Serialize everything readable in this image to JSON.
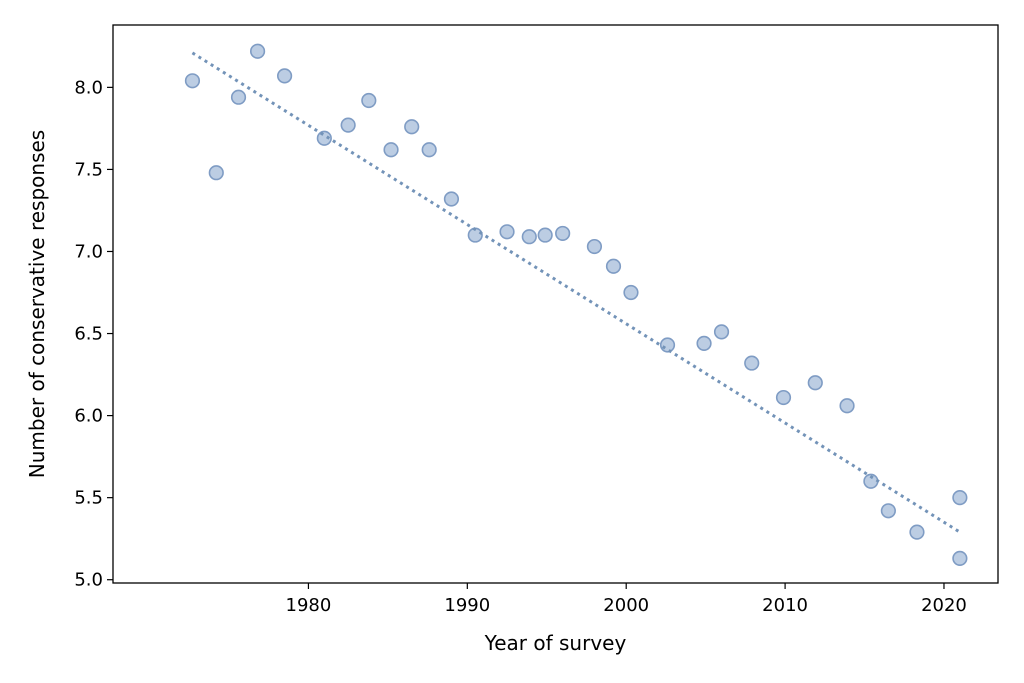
{
  "chart_data": {
    "type": "scatter",
    "title": "",
    "xlabel": "Year of survey",
    "ylabel": "Number of conservative responses",
    "xlim": [
      1967.7,
      2023.4
    ],
    "ylim": [
      4.98,
      8.38
    ],
    "xticks": [
      1980,
      1990,
      2000,
      2010,
      2020
    ],
    "yticks": [
      5.0,
      5.5,
      6.0,
      6.5,
      7.0,
      7.5,
      8.0
    ],
    "grid": false,
    "legend": "none",
    "colors": {
      "point_fill": "#b0c4de",
      "point_edge": "#7f9cc4",
      "trend": "#7393b8"
    },
    "points": [
      {
        "x": 1972.7,
        "y": 8.04
      },
      {
        "x": 1974.2,
        "y": 7.48
      },
      {
        "x": 1975.6,
        "y": 7.94
      },
      {
        "x": 1976.8,
        "y": 8.22
      },
      {
        "x": 1978.5,
        "y": 8.07
      },
      {
        "x": 1981.0,
        "y": 7.69
      },
      {
        "x": 1982.5,
        "y": 7.77
      },
      {
        "x": 1983.8,
        "y": 7.92
      },
      {
        "x": 1985.2,
        "y": 7.62
      },
      {
        "x": 1986.5,
        "y": 7.76
      },
      {
        "x": 1987.6,
        "y": 7.62
      },
      {
        "x": 1989.0,
        "y": 7.32
      },
      {
        "x": 1990.5,
        "y": 7.1
      },
      {
        "x": 1992.5,
        "y": 7.12
      },
      {
        "x": 1993.9,
        "y": 7.09
      },
      {
        "x": 1994.9,
        "y": 7.1
      },
      {
        "x": 1996.0,
        "y": 7.11
      },
      {
        "x": 1998.0,
        "y": 7.03
      },
      {
        "x": 1999.2,
        "y": 6.91
      },
      {
        "x": 2000.3,
        "y": 6.75
      },
      {
        "x": 2002.6,
        "y": 6.43
      },
      {
        "x": 2004.9,
        "y": 6.44
      },
      {
        "x": 2006.0,
        "y": 6.51
      },
      {
        "x": 2007.9,
        "y": 6.32
      },
      {
        "x": 2009.9,
        "y": 6.11
      },
      {
        "x": 2011.9,
        "y": 6.2
      },
      {
        "x": 2013.9,
        "y": 6.06
      },
      {
        "x": 2015.4,
        "y": 5.6
      },
      {
        "x": 2016.5,
        "y": 5.42
      },
      {
        "x": 2018.3,
        "y": 5.29
      },
      {
        "x": 2021.0,
        "y": 5.13
      },
      {
        "x": 2021.0,
        "y": 5.5
      }
    ],
    "trend_line": {
      "x": [
        1972.7,
        2021.0
      ],
      "y": [
        8.21,
        5.29
      ]
    }
  }
}
